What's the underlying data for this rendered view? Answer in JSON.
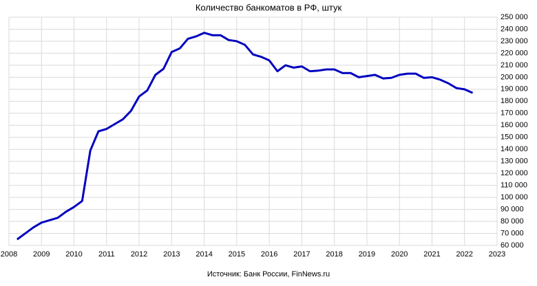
{
  "chart_data": {
    "type": "line",
    "title": "Количество банкоматов в РФ, штук",
    "source": "Источник: Банк России, FinNews.ru",
    "x": [
      2008.25,
      2008.5,
      2008.75,
      2009,
      2009.25,
      2009.5,
      2009.75,
      2010,
      2010.25,
      2010.5,
      2010.75,
      2011,
      2011.25,
      2011.5,
      2011.75,
      2012,
      2012.25,
      2012.5,
      2012.75,
      2013,
      2013.25,
      2013.5,
      2013.75,
      2014,
      2014.25,
      2014.5,
      2014.75,
      2015,
      2015.25,
      2015.5,
      2015.75,
      2016,
      2016.25,
      2016.5,
      2016.75,
      2017,
      2017.25,
      2017.5,
      2017.75,
      2018,
      2018.25,
      2018.5,
      2018.75,
      2019,
      2019.25,
      2019.5,
      2019.75,
      2020,
      2020.25,
      2020.5,
      2020.75,
      2021,
      2021.25,
      2021.5,
      2021.75,
      2022,
      2022.25
    ],
    "values": [
      65000,
      70000,
      75000,
      79000,
      81000,
      83000,
      88000,
      92000,
      97000,
      139000,
      155000,
      157000,
      161000,
      165000,
      172000,
      184000,
      189000,
      202000,
      207000,
      221000,
      224000,
      232000,
      234000,
      237000,
      235000,
      235000,
      231000,
      230000,
      227000,
      219000,
      217000,
      214000,
      205000,
      210000,
      208000,
      209000,
      205000,
      205500,
      206500,
      206500,
      203500,
      203500,
      200000,
      201000,
      202000,
      199000,
      199500,
      202000,
      203000,
      203000,
      199500,
      200000,
      198000,
      195000,
      191000,
      190000,
      187000
    ],
    "color": "#0000c0",
    "xlim": [
      2008,
      2023
    ],
    "xticks": [
      2008,
      2009,
      2010,
      2011,
      2012,
      2013,
      2014,
      2015,
      2016,
      2017,
      2018,
      2019,
      2020,
      2021,
      2022,
      2023
    ],
    "ylim": [
      60000,
      250000
    ],
    "yticks": [
      {
        "value": 60000,
        "label": "60 000"
      },
      {
        "value": 70000,
        "label": "70 000"
      },
      {
        "value": 80000,
        "label": "80 000"
      },
      {
        "value": 90000,
        "label": "90 000"
      },
      {
        "value": 100000,
        "label": "100 000"
      },
      {
        "value": 110000,
        "label": "110 000"
      },
      {
        "value": 120000,
        "label": "120 000"
      },
      {
        "value": 130000,
        "label": "130 000"
      },
      {
        "value": 140000,
        "label": "140 000"
      },
      {
        "value": 150000,
        "label": "150 000"
      },
      {
        "value": 160000,
        "label": "160 000"
      },
      {
        "value": 170000,
        "label": "170 000"
      },
      {
        "value": 180000,
        "label": "180 000"
      },
      {
        "value": 190000,
        "label": "190 000"
      },
      {
        "value": 200000,
        "label": "200 000"
      },
      {
        "value": 210000,
        "label": "210 000"
      },
      {
        "value": 220000,
        "label": "220 000"
      },
      {
        "value": 230000,
        "label": "230 000"
      },
      {
        "value": 240000,
        "label": "240 000"
      },
      {
        "value": 250000,
        "label": "250 000"
      }
    ],
    "grid": true
  }
}
